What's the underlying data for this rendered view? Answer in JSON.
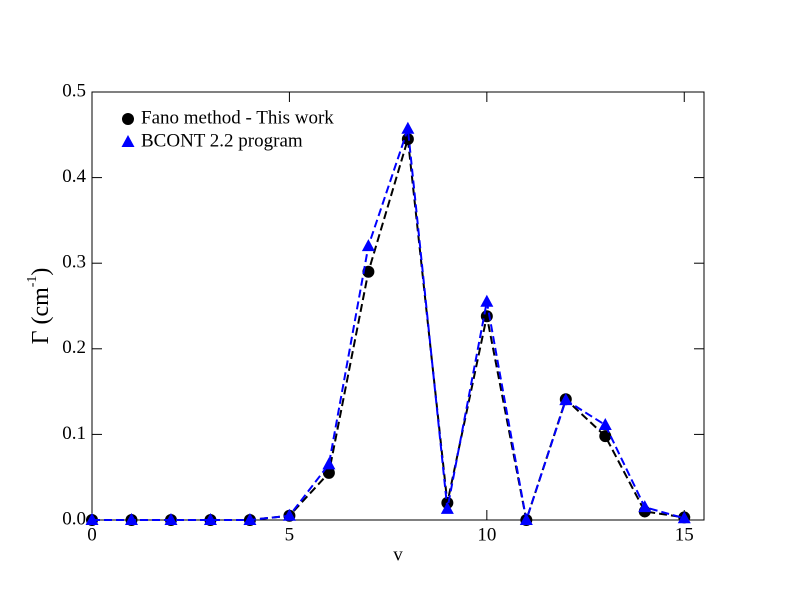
{
  "chart_data": {
    "type": "line",
    "xlabel": "v",
    "ylabel": {
      "text": "Γ (cm",
      "superscript": "-1",
      "suffix": ")"
    },
    "x": [
      0,
      1,
      2,
      3,
      4,
      5,
      6,
      7,
      8,
      9,
      10,
      11,
      12,
      13,
      14,
      15
    ],
    "series": [
      {
        "name": "Fano method - This work",
        "color": "#000000",
        "marker": "circle",
        "values": [
          0,
          0,
          0,
          0,
          0,
          0.005,
          0.055,
          0.29,
          0.445,
          0.02,
          0.238,
          0,
          0.141,
          0.098,
          0.01,
          0.003
        ]
      },
      {
        "name": "BCONT 2.2 program",
        "color": "#0000ff",
        "marker": "triangle",
        "values": [
          0,
          0,
          0,
          0,
          0,
          0.005,
          0.065,
          0.32,
          0.457,
          0.013,
          0.255,
          0,
          0.14,
          0.111,
          0.015,
          0.002
        ]
      }
    ],
    "xlim": [
      0,
      15.5
    ],
    "xticks": [
      0,
      5,
      10,
      15
    ],
    "ylim": [
      0,
      0.5
    ],
    "yticks": [
      {
        "value": 0,
        "label": "0.0"
      },
      {
        "value": 0.1,
        "label": "0.1"
      },
      {
        "value": 0.2,
        "label": "0.2"
      },
      {
        "value": 0.3,
        "label": "0.3"
      },
      {
        "value": 0.4,
        "label": "0.4"
      },
      {
        "value": 0.5,
        "label": "0.5"
      }
    ],
    "legend": "upper-left",
    "grid": false
  }
}
